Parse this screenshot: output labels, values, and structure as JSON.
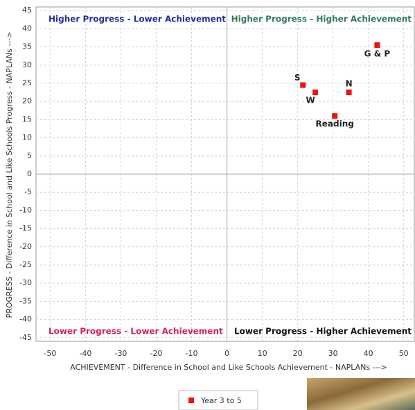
{
  "chart_data": {
    "type": "scatter",
    "x_label": "ACHIEVEMENT - Difference in School and Like Schools Achievement - NAPLANs --->",
    "y_label": "PROGRESS - Difference in School and Like Schools Progress - NAPLANs --->",
    "annotations": [
      {
        "text": "Higher Progress - Lower Achievement",
        "color": "#2b2b9e"
      },
      {
        "text": "Higher Progress - Higher Achievement",
        "color": "#2e7d5b"
      },
      {
        "text": "Lower Progress - Lower Achievement",
        "color": "#d0245a"
      },
      {
        "text": "Lower Progress - Higher Achievement",
        "color": "#111111"
      }
    ],
    "series": [
      {
        "name": "Year 3 to 5",
        "color": "#ee1111",
        "point_labels": [
          "S",
          "W",
          "N",
          "Reading",
          "G & P"
        ],
        "x": [
          21.5,
          25,
          34.5,
          30.5,
          42.5
        ],
        "values": [
          24.5,
          22.5,
          22.5,
          16,
          35.5
        ]
      }
    ],
    "xlim": [
      -54,
      53
    ],
    "ylim": [
      -46,
      46
    ],
    "xticks": [
      -50,
      -40,
      -30,
      -20,
      -10,
      0,
      10,
      20,
      30,
      40,
      50
    ],
    "yticks": [
      -45,
      -40,
      -35,
      -30,
      -25,
      -20,
      -15,
      -10,
      -5,
      0,
      5,
      10,
      15,
      20,
      25,
      30,
      35,
      40,
      45
    ],
    "grid": true
  }
}
